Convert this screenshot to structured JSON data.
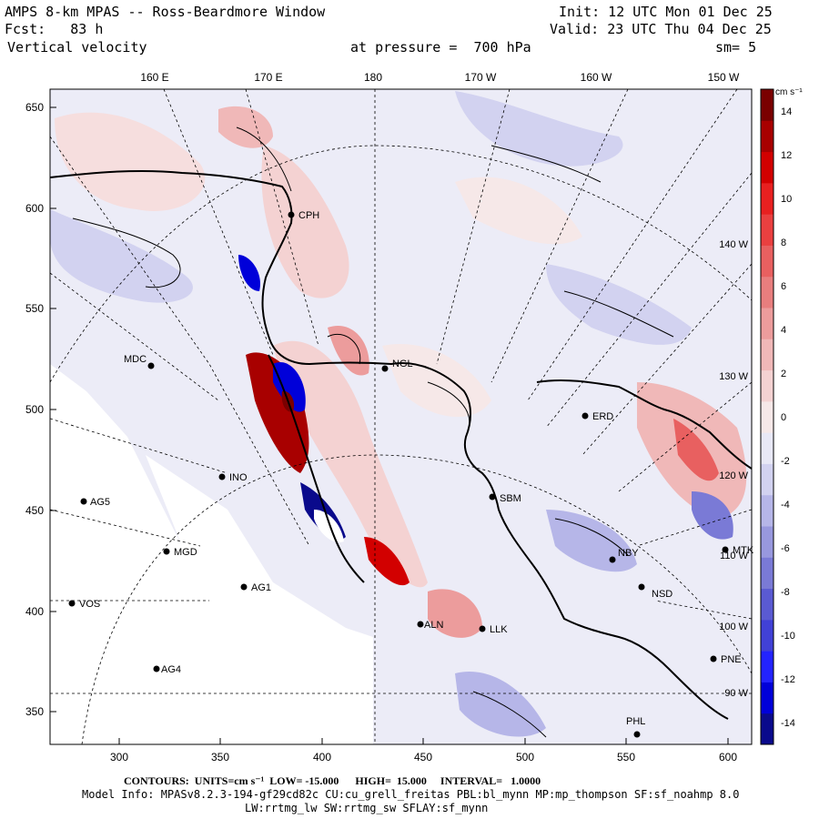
{
  "header": {
    "title": "AMPS 8-km MPAS -- Ross-Beardmore Window",
    "forecast_label": "Fcst:",
    "forecast_hours": "83 h",
    "field": "Vertical velocity",
    "init": "Init: 12 UTC Mon 01 Dec 25",
    "valid": "Valid: 23 UTC Thu 04 Dec 25",
    "level": "at pressure =  700 hPa",
    "smoothing": "sm= 5"
  },
  "longitude_labels": [
    "160 E",
    "170 E",
    "180",
    "170 W",
    "160 W",
    "150 W"
  ],
  "longitude_labels_inner": [
    "140 W",
    "130 W",
    "120 W",
    "110 W",
    "100 W",
    "90 W"
  ],
  "y_ticks": [
    "650",
    "600",
    "550",
    "500",
    "450",
    "400",
    "350"
  ],
  "x_ticks": [
    "300",
    "350",
    "400",
    "450",
    "500",
    "550",
    "600"
  ],
  "colorbar": {
    "units_label": "cm s⁻¹",
    "ticks": [
      "14",
      "12",
      "10",
      "8",
      "6",
      "4",
      "2",
      "0",
      "-2",
      "-4",
      "-6",
      "-8",
      "-10",
      "-12",
      "-14"
    ],
    "colors": [
      "#0a0a8c",
      "#0000d9",
      "#2323ff",
      "#4141d6",
      "#5a5ad2",
      "#7a7ad6",
      "#9898de",
      "#b6b6e8",
      "#d2d2f0",
      "#e8e8f6",
      "#f6e8e8",
      "#f4d2d2",
      "#f0b8b8",
      "#ec9c9c",
      "#e87e7e",
      "#e86060",
      "#ea4040",
      "#e82020",
      "#d20000",
      "#a80000",
      "#7a0000"
    ]
  },
  "stations": [
    {
      "id": "CPH"
    },
    {
      "id": "MDC"
    },
    {
      "id": "NGL"
    },
    {
      "id": "ERD"
    },
    {
      "id": "SBM"
    },
    {
      "id": "INO"
    },
    {
      "id": "AG5"
    },
    {
      "id": "MGD"
    },
    {
      "id": "AG1"
    },
    {
      "id": "VOS"
    },
    {
      "id": "AG4"
    },
    {
      "id": "NBY"
    },
    {
      "id": "NSD"
    },
    {
      "id": "MTK"
    },
    {
      "id": "PNE"
    },
    {
      "id": "PHL"
    },
    {
      "id": "LLK"
    },
    {
      "id": "ALN"
    }
  ],
  "footer": {
    "contours": "CONTOURS:  UNITS=cm s⁻¹  LOW= -15.000      HIGH=  15.000     INTERVAL=   1.0000",
    "model_info": "Model Info: MPASv8.2.3-194-gf29cd82c CU:cu_grell_freitas PBL:bl_mynn MP:mp_thompson SF:sf_noahmp 8.0",
    "model_info2": "LW:rrtmg_lw SW:rrtmg_sw SFLAY:sf_mynn"
  },
  "chart_data": {
    "type": "map",
    "title": "Vertical velocity at 700 hPa",
    "units": "cm s-1",
    "contour_low": -15.0,
    "contour_high": 15.0,
    "contour_interval": 1.0,
    "x_range": [
      265,
      612
    ],
    "y_range": [
      333,
      660
    ]
  }
}
